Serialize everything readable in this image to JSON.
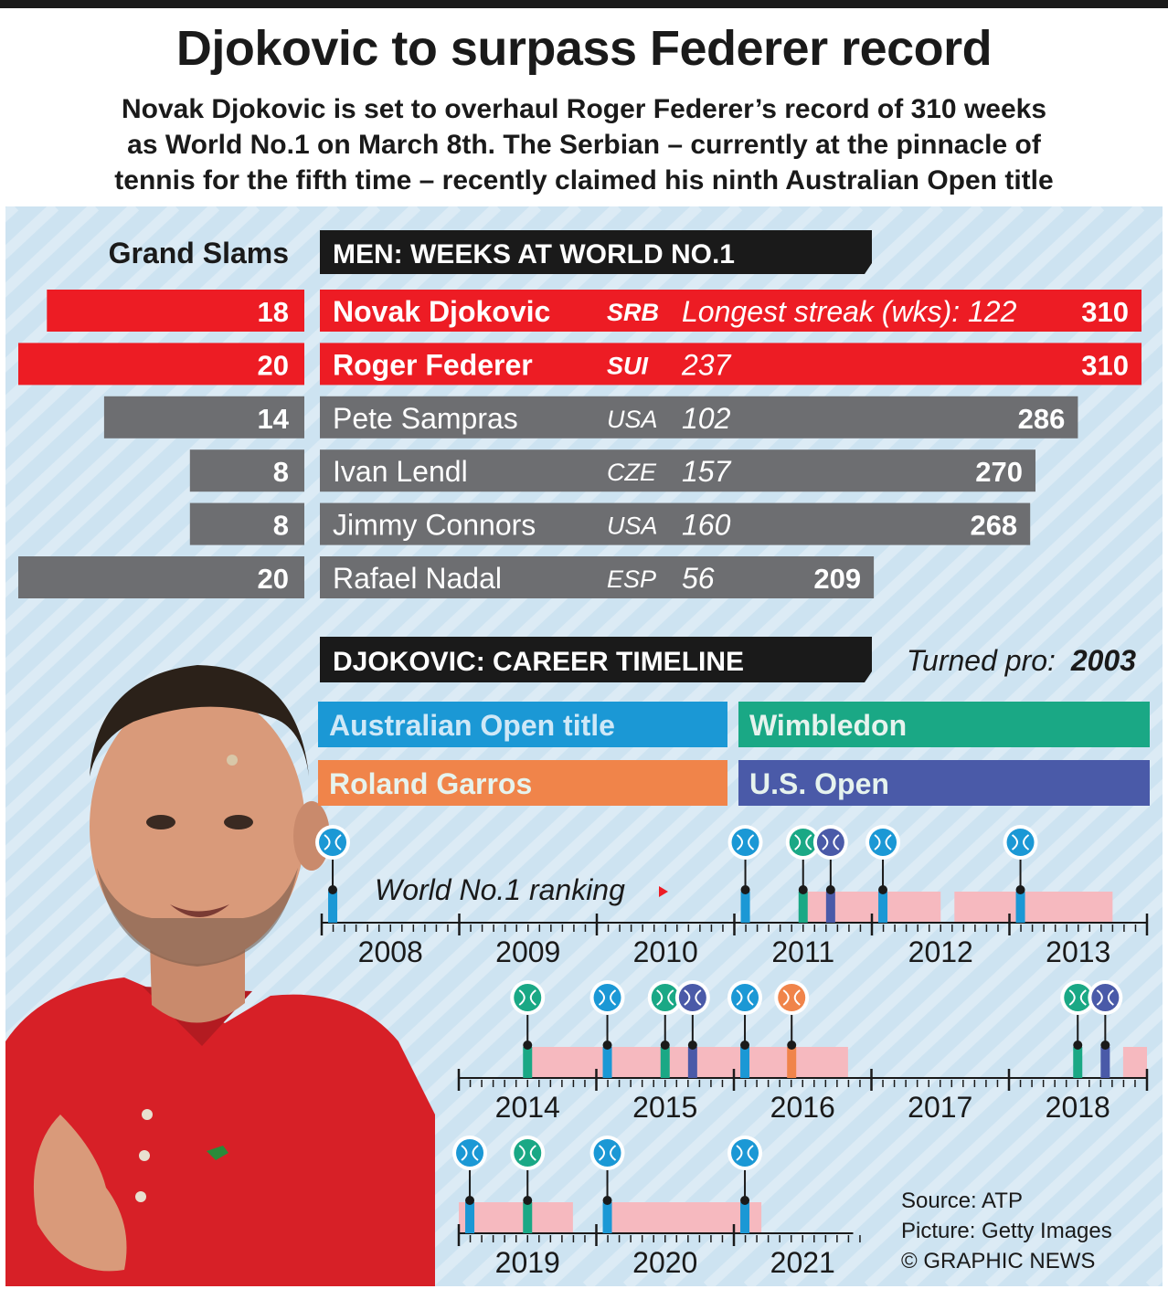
{
  "title": "Djokovic to surpass Federer record",
  "subtitle_lines": [
    "Novak Djokovic is set to overhaul Roger Federer’s record of 310 weeks",
    "as World No.1 on March 8th. The Serbian – currently at the pinnacle of",
    "tennis for the fifth time – recently claimed his ninth Australian Open title"
  ],
  "colors": {
    "highlight": "#ed1c24",
    "other": "#6d6e71",
    "header": "#1a1a1a",
    "australian": "#1b98d5",
    "wimbledon": "#1aa885",
    "roland_garros": "#f0844a",
    "us_open": "#4a5aa8",
    "ranking": "#f6b9bf",
    "background": "#cde3f1"
  },
  "chart_data": [
    {
      "type": "bar",
      "title": "Men: Weeks at World No.1",
      "left_header": "Grand Slams",
      "players": [
        {
          "name": "Novak Djokovic",
          "country": "SRB",
          "grand_slams": 18,
          "longest_streak_label": "Longest streak (wks): 122",
          "longest_streak": 122,
          "weeks": 310,
          "highlight": true
        },
        {
          "name": "Roger Federer",
          "country": "SUI",
          "grand_slams": 20,
          "longest_streak_label": "237",
          "longest_streak": 237,
          "weeks": 310,
          "highlight": true
        },
        {
          "name": "Pete Sampras",
          "country": "USA",
          "grand_slams": 14,
          "longest_streak_label": "102",
          "longest_streak": 102,
          "weeks": 286,
          "highlight": false
        },
        {
          "name": "Ivan Lendl",
          "country": "CZE",
          "grand_slams": 8,
          "longest_streak_label": "157",
          "longest_streak": 157,
          "weeks": 270,
          "highlight": false
        },
        {
          "name": "Jimmy Connors",
          "country": "USA",
          "grand_slams": 8,
          "longest_streak_label": "160",
          "longest_streak": 160,
          "weeks": 268,
          "highlight": false
        },
        {
          "name": "Rafael Nadal",
          "country": "ESP",
          "grand_slams": 20,
          "longest_streak_label": "56",
          "longest_streak": 56,
          "weeks": 209,
          "highlight": false
        }
      ]
    },
    {
      "type": "timeline",
      "title": "Djokovic: Career Timeline",
      "turned_pro_label": "Turned pro:",
      "turned_pro": "2003",
      "ranking_label": "World No.1 ranking",
      "legend": [
        {
          "key": "australian",
          "label": "Australian Open title"
        },
        {
          "key": "wimbledon",
          "label": "Wimbledon"
        },
        {
          "key": "roland_garros",
          "label": "Roland Garros"
        },
        {
          "key": "us_open",
          "label": "U.S. Open"
        }
      ],
      "rows": [
        {
          "years": [
            2008,
            2009,
            2010,
            2011,
            2012,
            2013
          ]
        },
        {
          "years": [
            2014,
            2015,
            2016,
            2017,
            2018
          ]
        },
        {
          "years": [
            2019,
            2020,
            2021
          ]
        }
      ],
      "titles": [
        {
          "year": 2008.08,
          "type": "australian"
        },
        {
          "year": 2011.08,
          "type": "australian"
        },
        {
          "year": 2011.5,
          "type": "wimbledon"
        },
        {
          "year": 2011.7,
          "type": "us_open"
        },
        {
          "year": 2012.08,
          "type": "australian"
        },
        {
          "year": 2013.08,
          "type": "australian"
        },
        {
          "year": 2014.5,
          "type": "wimbledon"
        },
        {
          "year": 2015.08,
          "type": "australian"
        },
        {
          "year": 2015.5,
          "type": "wimbledon"
        },
        {
          "year": 2015.7,
          "type": "us_open"
        },
        {
          "year": 2016.08,
          "type": "australian"
        },
        {
          "year": 2016.42,
          "type": "roland_garros"
        },
        {
          "year": 2018.5,
          "type": "wimbledon"
        },
        {
          "year": 2018.7,
          "type": "us_open"
        },
        {
          "year": 2019.08,
          "type": "australian"
        },
        {
          "year": 2019.5,
          "type": "wimbledon"
        },
        {
          "year": 2020.08,
          "type": "australian"
        },
        {
          "year": 2021.08,
          "type": "australian"
        }
      ],
      "ranking_periods": [
        {
          "start": 2011.5,
          "end": 2012.5
        },
        {
          "start": 2012.6,
          "end": 2013.75
        },
        {
          "start": 2014.5,
          "end": 2016.83
        },
        {
          "start": 2018.83,
          "end": 2019.83
        },
        {
          "start": 2020.08,
          "end": 2021.2
        }
      ]
    }
  ],
  "credits": {
    "source": "Source: ATP",
    "picture": "Picture: Getty Images",
    "copyright": "© GRAPHIC NEWS"
  }
}
